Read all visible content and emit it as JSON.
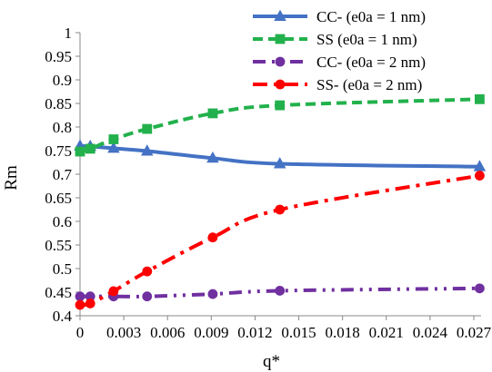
{
  "chart_data": {
    "type": "line",
    "title": "",
    "xlabel": "q*",
    "ylabel": "Rm",
    "xlim": [
      0,
      0.0275
    ],
    "ylim": [
      0.4,
      1.0
    ],
    "x_ticks": [
      0,
      0.003,
      0.006,
      0.009,
      0.012,
      0.015,
      0.018,
      0.021,
      0.024,
      0.027
    ],
    "x_tick_labels": [
      "0",
      "0.003",
      "0.006",
      "0.009",
      "0.012",
      "0.015",
      "0.018",
      "0.021",
      "0.024",
      "0.027"
    ],
    "y_ticks": [
      0.4,
      0.45,
      0.5,
      0.55,
      0.6,
      0.65,
      0.7,
      0.75,
      0.8,
      0.85,
      0.9,
      0.95,
      1.0
    ],
    "y_tick_labels": [
      "0.4",
      "0.45",
      "0.5",
      "0.55",
      "0.6",
      "0.65",
      "0.7",
      "0.75",
      "0.8",
      "0.85",
      "0.9",
      "0.95",
      "1"
    ],
    "grid": false,
    "legend_position": "top-right",
    "series": [
      {
        "name": "CC- (e0a = 1 nm)",
        "color": "#4472c4",
        "marker": "triangle",
        "dash": "solid",
        "x": [
          0,
          0.0007,
          0.0023,
          0.0046,
          0.0091,
          0.0137,
          0.0274
        ],
        "y": [
          0.76,
          0.759,
          0.755,
          0.749,
          0.734,
          0.722,
          0.716
        ]
      },
      {
        "name": "SS (e0a = 1 nm)",
        "color": "#22b14c",
        "marker": "square",
        "dash": "dash",
        "x": [
          0,
          0.0007,
          0.0023,
          0.0046,
          0.0091,
          0.0137,
          0.0274
        ],
        "y": [
          0.748,
          0.754,
          0.774,
          0.796,
          0.829,
          0.846,
          0.859
        ]
      },
      {
        "name": "CC- (e0a = 2 nm)",
        "color": "#7030a0",
        "marker": "circle",
        "dash": "dashdotdot",
        "x": [
          0,
          0.0007,
          0.0023,
          0.0046,
          0.0091,
          0.0137,
          0.0274
        ],
        "y": [
          0.441,
          0.441,
          0.441,
          0.441,
          0.446,
          0.453,
          0.458
        ]
      },
      {
        "name": "SS- (e0a = 2 nm)",
        "color": "#ff0000",
        "marker": "circle",
        "dash": "dashdot",
        "x": [
          0,
          0.0007,
          0.0023,
          0.0046,
          0.0091,
          0.0137,
          0.0274
        ],
        "y": [
          0.423,
          0.426,
          0.452,
          0.494,
          0.566,
          0.625,
          0.697
        ]
      }
    ]
  }
}
